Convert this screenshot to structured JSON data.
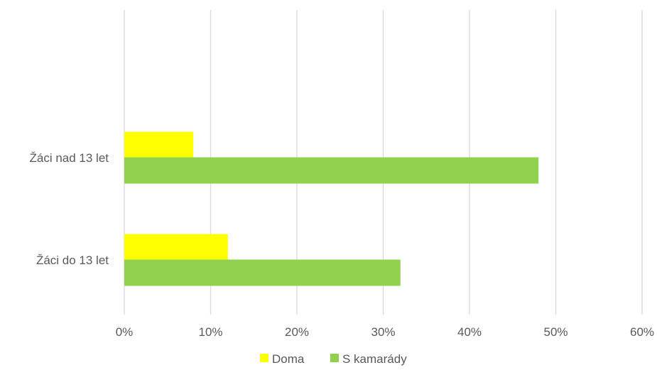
{
  "chart_data": {
    "type": "bar",
    "orientation": "horizontal",
    "categories": [
      "Žáci nad 13 let",
      "Žáci do 13 let"
    ],
    "series": [
      {
        "name": "Doma",
        "values": [
          8,
          12
        ],
        "color": "#ffff00"
      },
      {
        "name": "S kamarády",
        "values": [
          48,
          32
        ],
        "color": "#92d050"
      }
    ],
    "xlim": [
      0,
      60
    ],
    "x_ticks": [
      0,
      10,
      20,
      30,
      40,
      50,
      60
    ],
    "x_tick_labels": [
      "0%",
      "10%",
      "20%",
      "30%",
      "40%",
      "50%",
      "60%"
    ],
    "unit": "%",
    "grid": true,
    "legend_position": "bottom",
    "gridline_color": "#d9d9d9",
    "label_color": "#595959"
  }
}
